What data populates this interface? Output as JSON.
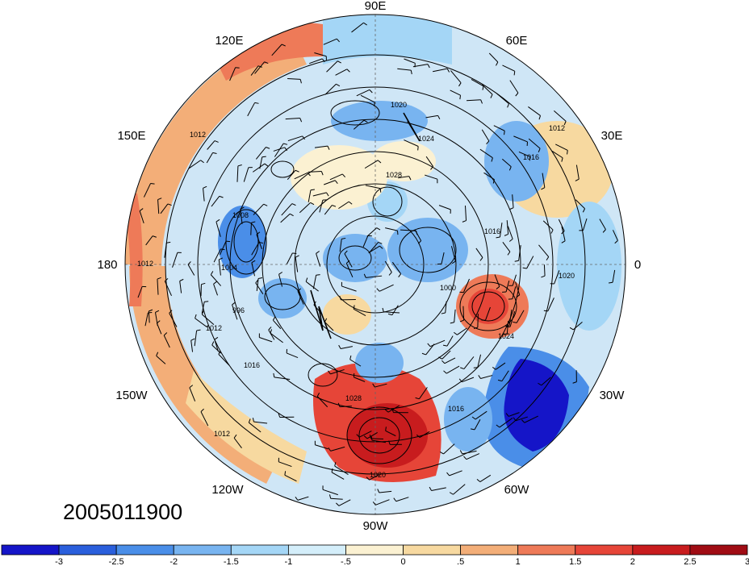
{
  "map": {
    "projection": "north-polar-stereographic",
    "timestamp": "2005011900",
    "longitude_labels": [
      "90E",
      "60E",
      "30E",
      "0",
      "30W",
      "60W",
      "90W",
      "120W",
      "150W",
      "180",
      "150E",
      "120E"
    ],
    "contour_labels": [
      "1020",
      "1024",
      "1012",
      "1016",
      "1028",
      "1008",
      "1004",
      "996",
      "1000",
      "1012",
      "1016",
      "1024",
      "1028",
      "1020",
      "1012",
      "1016",
      "1012",
      "1012",
      "1020",
      "1016"
    ],
    "shading": "temperature anomaly",
    "contours": "sea level pressure",
    "overlay": "wind barbs"
  },
  "colorbar": {
    "tick_labels": [
      "-3",
      "-2.5",
      "-2",
      "-1.5",
      "-1",
      "-.5",
      "0",
      ".5",
      "1",
      "1.5",
      "2",
      "2.5",
      "3"
    ],
    "colors": [
      "#1515c8",
      "#2a5fdc",
      "#4a8ee8",
      "#78b4f0",
      "#a4d6f6",
      "#d4eefa",
      "#fbf1d2",
      "#f7d9a0",
      "#f3ae78",
      "#ee7a58",
      "#e64538",
      "#c81c1e",
      "#a00c14"
    ]
  }
}
